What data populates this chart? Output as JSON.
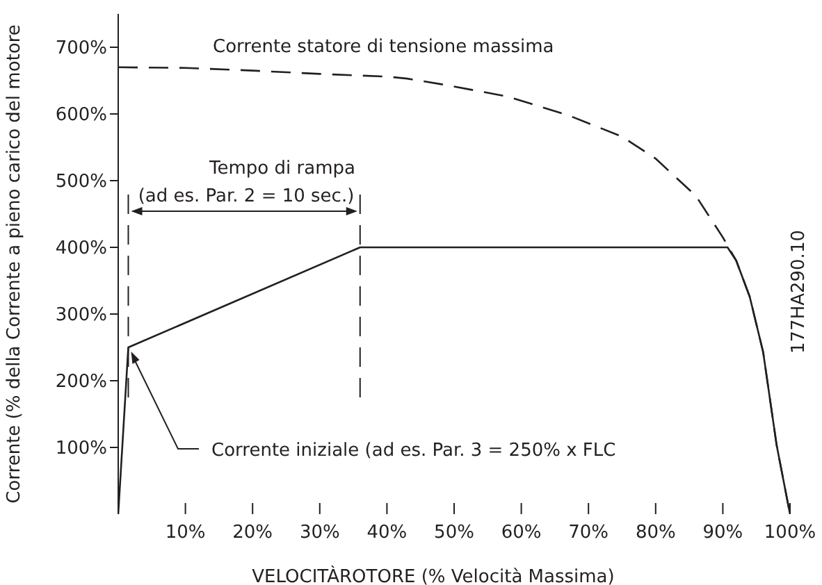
{
  "chart_data": {
    "type": "line",
    "xlabel": "VELOCITÀROTORE (% Velocità Massima)",
    "ylabel": "Corrente (% della Corrente a pieno carico del motore",
    "xlim": [
      0,
      100
    ],
    "ylim": [
      0,
      750
    ],
    "xticks": [
      {
        "value": 10,
        "label": "10%"
      },
      {
        "value": 20,
        "label": "20%"
      },
      {
        "value": 30,
        "label": "30%"
      },
      {
        "value": 40,
        "label": "40%"
      },
      {
        "value": 50,
        "label": "50%"
      },
      {
        "value": 60,
        "label": "60%"
      },
      {
        "value": 70,
        "label": "70%"
      },
      {
        "value": 80,
        "label": "80%"
      },
      {
        "value": 90,
        "label": "90%"
      },
      {
        "value": 100,
        "label": "100%"
      }
    ],
    "yticks": [
      {
        "value": 100,
        "label": "100%"
      },
      {
        "value": 200,
        "label": "200%"
      },
      {
        "value": 300,
        "label": "300%"
      },
      {
        "value": 400,
        "label": "400%"
      },
      {
        "value": 500,
        "label": "500%"
      },
      {
        "value": 600,
        "label": "600%"
      },
      {
        "value": 700,
        "label": "700%"
      }
    ],
    "grid": false,
    "legend": false,
    "marker": "none",
    "series": [
      {
        "name": "Corrente statore di tensione massima",
        "color": "#231f20",
        "line_style": "dashed",
        "x": [
          0,
          10,
          20,
          30,
          40,
          43,
          49,
          58,
          67,
          75,
          80,
          86,
          90,
          92,
          94,
          96,
          98,
          100
        ],
        "values": [
          670,
          669,
          665,
          660,
          656,
          653,
          643,
          626,
          598,
          566,
          533,
          477,
          415,
          380,
          326,
          243,
          104,
          0
        ]
      },
      {
        "color": "#231f20",
        "line_style": "solid",
        "x": [
          0,
          1.5,
          36,
          90.7,
          92,
          94,
          96,
          98,
          100
        ],
        "values": [
          0,
          250,
          400,
          400,
          380,
          326,
          243,
          104,
          0
        ]
      }
    ],
    "ref_lines": [
      {
        "axis": "x",
        "value": 1.5,
        "line_style": "dashed"
      },
      {
        "axis": "x",
        "value": 36,
        "line_style": "dashed"
      }
    ],
    "annotations": [
      "Tempo di rampa",
      "(ad es. Par. 2 = 10 sec.)",
      {
        "text": "Corrente iniziale (ad es. Par. 3 = 250% x FLC",
        "x": 1.5,
        "y": 250
      },
      "177HA290.10"
    ]
  }
}
